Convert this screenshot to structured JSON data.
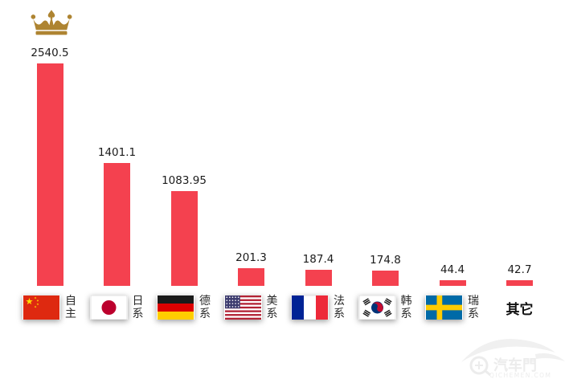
{
  "chart_data": {
    "type": "bar",
    "title": "",
    "xlabel": "",
    "ylabel": "",
    "grid": false,
    "legend": "none",
    "ylim": [
      0,
      2700
    ],
    "categories": [
      "自主",
      "日系",
      "德系",
      "美系",
      "法系",
      "韩系",
      "瑞系",
      "其它"
    ],
    "values": [
      2540.5,
      1401.1,
      1083.95,
      201.3,
      187.4,
      174.8,
      44.4,
      42.7
    ],
    "value_labels": [
      "2540.5",
      "1401.1",
      "1083.95",
      "201.3",
      "187.4",
      "174.8",
      "44.4",
      "42.7"
    ],
    "flags": [
      "china-flag",
      "japan-flag",
      "germany-flag",
      "usa-flag",
      "france-flag",
      "south-korea-flag",
      "sweden-flag",
      null
    ],
    "bar_color": "#F4414F",
    "crown": {
      "on_category": "自主",
      "color": "#AE8431"
    }
  },
  "watermark": {
    "brand": "汽车門",
    "domain": "QICHEMEN.COM",
    "color": "#EDEDED"
  }
}
